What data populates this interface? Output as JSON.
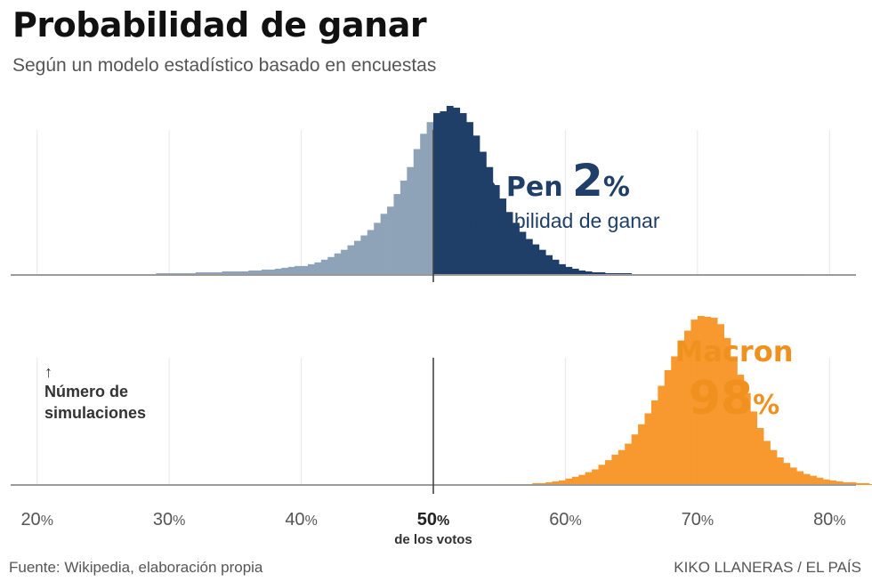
{
  "header": {
    "title": "Probabilidad de ganar",
    "subtitle": "Según un modelo estadístico basado en encuestas"
  },
  "footer": {
    "source": "Fuente: Wikipedia, elaboración propia",
    "credit": "KIKO LLANERAS / EL PAÍS"
  },
  "colors": {
    "lepen": "#8ea3b8",
    "lepen_dark": "#1f3f68",
    "macron": "#f7992e",
    "macron_light": "#f8c98f"
  },
  "chart_data": {
    "type": "bar",
    "x_domain": [
      18,
      82
    ],
    "bin_width": 0.5,
    "x_ticks": [
      {
        "value": 20,
        "num": "20",
        "unit": "%"
      },
      {
        "value": 30,
        "num": "30",
        "unit": "%"
      },
      {
        "value": 40,
        "num": "40",
        "unit": "%"
      },
      {
        "value": 50,
        "num": "50",
        "unit": "%",
        "sub": "de los votos"
      },
      {
        "value": 60,
        "num": "60",
        "unit": "%"
      },
      {
        "value": 70,
        "num": "70",
        "unit": "%"
      },
      {
        "value": 80,
        "num": "80",
        "unit": "%"
      }
    ],
    "threshold": 50,
    "ylabel_arrow": "↑",
    "ylabel_lines": [
      "Número de",
      "simulaciones"
    ],
    "panels": [
      {
        "name": "Le Pen",
        "probability_num": "2",
        "probability_unit": "%",
        "probability_text": "probabilidad de ganar",
        "x_start": 20,
        "counts": [
          0,
          0,
          0,
          0,
          0,
          0,
          1,
          1,
          1,
          1,
          1,
          1,
          1,
          1,
          1,
          1,
          1,
          1,
          2,
          2,
          2,
          2,
          2,
          2,
          3,
          3,
          3,
          3,
          4,
          4,
          4,
          4,
          5,
          5,
          6,
          6,
          7,
          8,
          9,
          10,
          10,
          12,
          14,
          17,
          20,
          24,
          28,
          33,
          38,
          44,
          50,
          58,
          68,
          76,
          90,
          105,
          120,
          140,
          157,
          170,
          180,
          182,
          188,
          186,
          180,
          170,
          155,
          137,
          120,
          100,
          85,
          70,
          58,
          48,
          40,
          34,
          28,
          22,
          17,
          12,
          9,
          7,
          5,
          4,
          3,
          3,
          2,
          2,
          2,
          2,
          1,
          1,
          1,
          1,
          1,
          1,
          1,
          1,
          1,
          1,
          1,
          1,
          1,
          1,
          1,
          1,
          1,
          1,
          1,
          1,
          1,
          1,
          1,
          1,
          1,
          1,
          0,
          0,
          0,
          0,
          0
        ]
      },
      {
        "name": "Macron",
        "probability_num": "98",
        "probability_unit": "%",
        "x_start": 20,
        "counts": [
          0,
          0,
          0,
          0,
          0,
          0,
          0,
          0,
          0,
          0,
          0,
          0,
          0,
          0,
          0,
          0,
          0,
          0,
          0,
          0,
          0,
          0,
          0,
          0,
          0,
          0,
          0,
          0,
          0,
          0,
          0,
          0,
          0,
          0,
          0,
          0,
          0,
          0,
          0,
          0,
          0,
          0,
          0,
          0,
          0,
          0,
          0,
          0,
          0,
          0,
          0,
          0,
          0,
          0,
          0,
          0,
          0,
          0,
          0,
          0,
          0,
          0,
          0,
          0,
          0,
          0,
          0,
          0,
          0,
          0,
          1,
          1,
          1,
          1,
          1,
          2,
          2,
          3,
          4,
          5,
          7,
          9,
          11,
          14,
          17,
          22,
          27,
          33,
          38,
          45,
          55,
          66,
          78,
          92,
          108,
          125,
          140,
          155,
          168,
          180,
          184,
          183,
          182,
          175,
          160,
          140,
          120,
          100,
          80,
          62,
          48,
          38,
          30,
          24,
          19,
          15,
          12,
          10,
          8,
          6,
          5,
          4,
          3,
          3,
          2,
          2,
          1,
          1,
          1,
          1,
          0
        ]
      }
    ]
  }
}
